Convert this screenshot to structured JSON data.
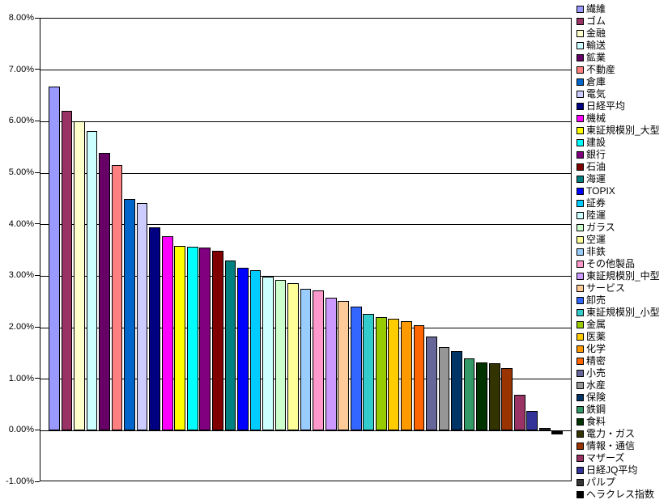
{
  "chart_data": {
    "type": "bar",
    "title": "",
    "xlabel": "",
    "ylabel": "",
    "ylim": [
      -1,
      8
    ],
    "y_tick_step": 1,
    "y_tick_labels": [
      "8.00%",
      "7.00%",
      "6.00%",
      "5.00%",
      "4.00%",
      "3.00%",
      "2.00%",
      "1.00%",
      "0.00%",
      "-1.00%"
    ],
    "grid": true,
    "legend_position": "right",
    "plot_background": "#FFFFFF",
    "gridline_color": "#000000",
    "series": [
      {
        "name": "繊維",
        "value": 6.68,
        "color": "#9999FF"
      },
      {
        "name": "ゴム",
        "value": 6.21,
        "color": "#993366"
      },
      {
        "name": "金融",
        "value": 6.01,
        "color": "#FFFFCC"
      },
      {
        "name": "輸送",
        "value": 5.81,
        "color": "#CCFFFF"
      },
      {
        "name": "鉱業",
        "value": 5.39,
        "color": "#660066"
      },
      {
        "name": "不動産",
        "value": 5.16,
        "color": "#FF8080"
      },
      {
        "name": "倉庫",
        "value": 4.5,
        "color": "#0066CC"
      },
      {
        "name": "電気",
        "value": 4.42,
        "color": "#CCCCFF"
      },
      {
        "name": "日経平均",
        "value": 3.95,
        "color": "#000080"
      },
      {
        "name": "機械",
        "value": 3.78,
        "color": "#FF00FF"
      },
      {
        "name": "東証規模別_大型",
        "value": 3.59,
        "color": "#FFFF00"
      },
      {
        "name": "建設",
        "value": 3.57,
        "color": "#00FFFF"
      },
      {
        "name": "銀行",
        "value": 3.55,
        "color": "#800080"
      },
      {
        "name": "石油",
        "value": 3.49,
        "color": "#800000"
      },
      {
        "name": "海運",
        "value": 3.3,
        "color": "#008080"
      },
      {
        "name": "TOPIX",
        "value": 3.17,
        "color": "#0000FF"
      },
      {
        "name": "証券",
        "value": 3.11,
        "color": "#00CCFF"
      },
      {
        "name": "陸運",
        "value": 2.99,
        "color": "#CCFFFF"
      },
      {
        "name": "ガラス",
        "value": 2.93,
        "color": "#CCFFCC"
      },
      {
        "name": "空運",
        "value": 2.86,
        "color": "#FFFF99"
      },
      {
        "name": "非鉄",
        "value": 2.76,
        "color": "#99CCFF"
      },
      {
        "name": "その他製品",
        "value": 2.72,
        "color": "#FF99CC"
      },
      {
        "name": "東証規模別_中型",
        "value": 2.58,
        "color": "#CC99FF"
      },
      {
        "name": "サービス",
        "value": 2.52,
        "color": "#FFCC99"
      },
      {
        "name": "卸売",
        "value": 2.41,
        "color": "#3366FF"
      },
      {
        "name": "東証規模別_小型",
        "value": 2.27,
        "color": "#33CCCC"
      },
      {
        "name": "金属",
        "value": 2.2,
        "color": "#99CC00"
      },
      {
        "name": "医薬",
        "value": 2.17,
        "color": "#FFCC00"
      },
      {
        "name": "化学",
        "value": 2.13,
        "color": "#FF9900"
      },
      {
        "name": "精密",
        "value": 2.05,
        "color": "#FF6600"
      },
      {
        "name": "小売",
        "value": 1.82,
        "color": "#666699"
      },
      {
        "name": "水産",
        "value": 1.63,
        "color": "#969696"
      },
      {
        "name": "保険",
        "value": 1.55,
        "color": "#003366"
      },
      {
        "name": "鉄鋼",
        "value": 1.41,
        "color": "#339966"
      },
      {
        "name": "食料",
        "value": 1.33,
        "color": "#003300"
      },
      {
        "name": "電力・ガス",
        "value": 1.31,
        "color": "#333300"
      },
      {
        "name": "情報・通信",
        "value": 1.22,
        "color": "#993300"
      },
      {
        "name": "マザーズ",
        "value": 0.7,
        "color": "#993366"
      },
      {
        "name": "日経JQ平均",
        "value": 0.38,
        "color": "#333399"
      },
      {
        "name": "パルプ",
        "value": 0.06,
        "color": "#333333"
      },
      {
        "name": "ヘラクレス指数",
        "value": -0.08,
        "color": "#000000"
      }
    ]
  }
}
